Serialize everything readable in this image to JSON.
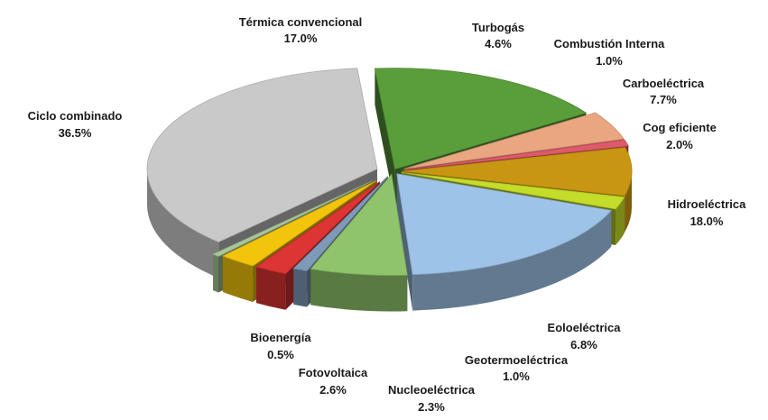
{
  "chart_data": {
    "type": "pie",
    "title": "",
    "legend": "none",
    "slices": [
      {
        "label": "Térmica convencional",
        "value_label": "17.0%",
        "value": 17.0,
        "color": "#5a9e3c"
      },
      {
        "label": "Turbogás",
        "value_label": "4.6%",
        "value": 4.6,
        "color": "#e9a680"
      },
      {
        "label": "Combustión  Interna",
        "value_label": "1.0%",
        "value": 1.0,
        "color": "#e0596a"
      },
      {
        "label": "Carboeléctrica",
        "value_label": "7.7%",
        "value": 7.7,
        "color": "#c89612"
      },
      {
        "label": "Cog eficiente",
        "value_label": "2.0%",
        "value": 2.0,
        "color": "#c4dc2a"
      },
      {
        "label": "Hidroeléctrica",
        "value_label": "18.0%",
        "value": 18.0,
        "color": "#9ec3e8"
      },
      {
        "label": "Eoloeléctrica",
        "value_label": "6.8%",
        "value": 6.8,
        "color": "#8fc46c"
      },
      {
        "label": "Geotermoeléctrica",
        "value_label": "1.0%",
        "value": 1.0,
        "color": "#7f9ab8"
      },
      {
        "label": "Nucleoeléctrica",
        "value_label": "2.3%",
        "value": 2.3,
        "color": "#dd3434"
      },
      {
        "label": "Fotovoltaica",
        "value_label": "2.6%",
        "value": 2.6,
        "color": "#f2c40c"
      },
      {
        "label": "Bioenergía",
        "value_label": "0.5%",
        "value": 0.5,
        "color": "#a9c79a"
      },
      {
        "label": "Ciclo combinado",
        "value_label": "36.5%",
        "value": 36.5,
        "color": "#c9c9c9"
      }
    ]
  }
}
